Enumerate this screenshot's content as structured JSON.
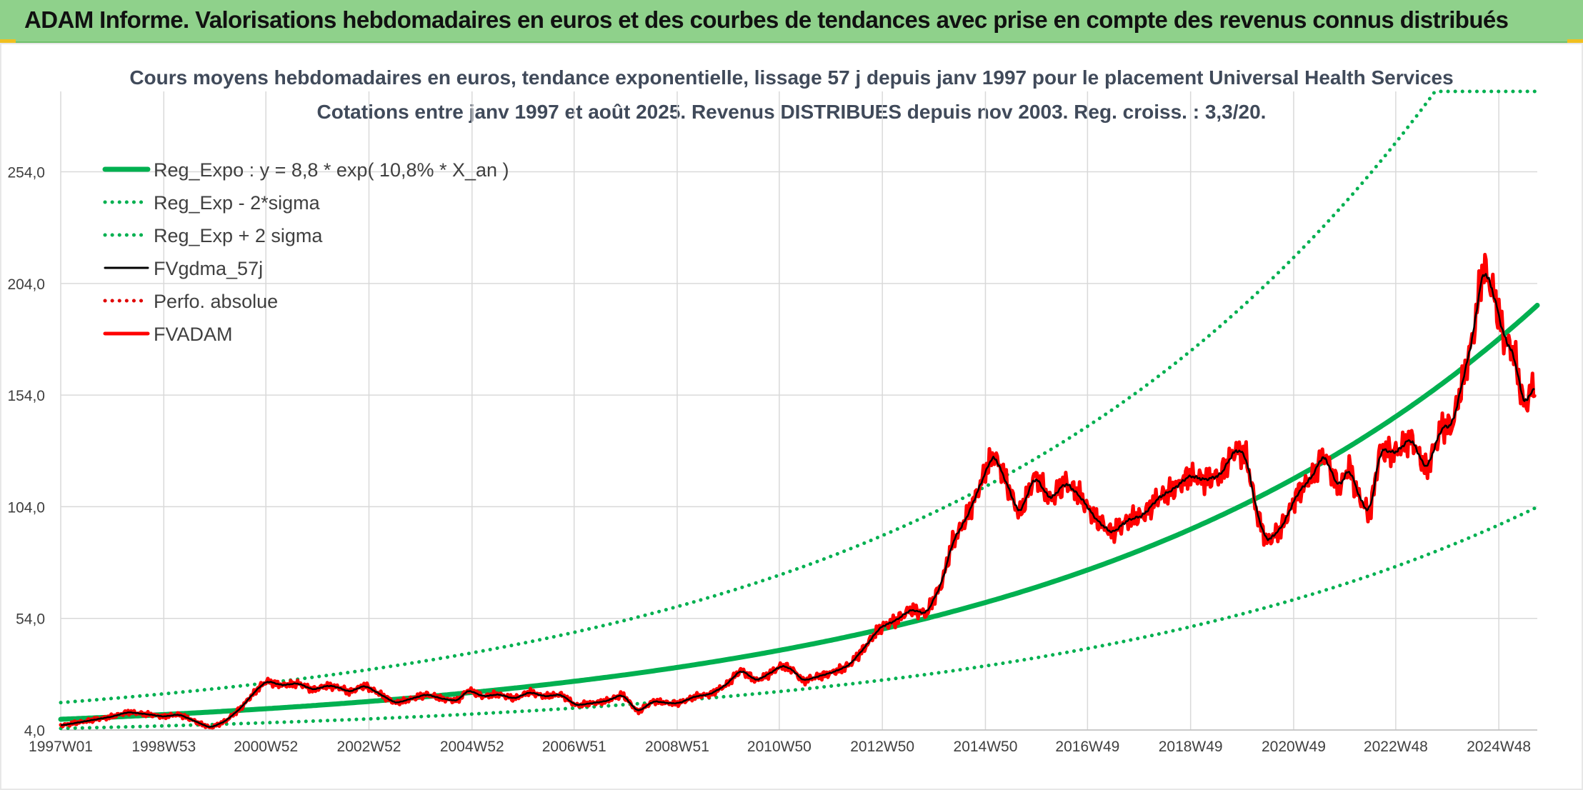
{
  "header": {
    "title": "ADAM Informe. Valorisations hebdomadaires en euros et des courbes de tendances avec prise en compte des revenus connus distribués"
  },
  "chart_data": {
    "type": "line",
    "title": "Cours moyens hebdomadaires en euros, tendance exponentielle, lissage 57 j depuis janv 1997 pour le placement Universal Health Services",
    "subtitle": "Cotations entre janv 1997 et août 2025. Revenus DISTRIBUES depuis nov 2003. Reg. croiss. : 3,3/20.",
    "xlabel": "",
    "ylabel": "",
    "x_ticks": [
      "1997W01",
      "1998W53",
      "2000W52",
      "2002W52",
      "2004W52",
      "2006W51",
      "2008W51",
      "2010W50",
      "2012W50",
      "2014W50",
      "2016W49",
      "2018W49",
      "2020W49",
      "2022W48",
      "2024W48"
    ],
    "y_ticks": [
      "4,0",
      "54,0",
      "104,0",
      "154,0",
      "204,0",
      "254,0"
    ],
    "ylim": [
      4,
      290
    ],
    "xlim": [
      1997.0,
      2025.65
    ],
    "grid": true,
    "legend_position": "top-left",
    "series": [
      {
        "name": "Reg_Expo : y = 8,8 * exp( 10,8% *  X_an )",
        "color": "#00b050",
        "style": "solid-thick",
        "formula": {
          "a": 8.8,
          "rate": 0.108,
          "x0": 1997.0,
          "factor": 1.0
        }
      },
      {
        "name": "Reg_Exp - 2*sigma",
        "color": "#00b050",
        "style": "dotted",
        "formula": {
          "a": 8.8,
          "rate": 0.108,
          "x0": 1997.0,
          "factor": 0.535
        }
      },
      {
        "name": "Reg_Exp + 2 sigma",
        "color": "#00b050",
        "style": "dotted",
        "formula": {
          "a": 8.8,
          "rate": 0.108,
          "x0": 1997.0,
          "factor": 1.85
        },
        "clip_max": 290
      },
      {
        "name": "FVgdma_57j",
        "color": "#000000",
        "style": "solid",
        "smoothing_of": "FVADAM"
      },
      {
        "name": "Perfo. absolue",
        "color": "#e00000",
        "style": "dotted"
      },
      {
        "name": "FVADAM",
        "color": "#ff0000",
        "style": "solid-thick",
        "x": [
          1997.0,
          1997.5,
          1998.0,
          1998.3,
          1998.7,
          1999.0,
          1999.3,
          1999.6,
          1999.9,
          2000.2,
          2000.5,
          2000.8,
          2001.0,
          2001.3,
          2001.6,
          2001.9,
          2002.2,
          2002.4,
          2002.6,
          2002.9,
          2003.2,
          2003.5,
          2003.8,
          2004.1,
          2004.4,
          2004.7,
          2004.9,
          2005.2,
          2005.5,
          2005.8,
          2006.1,
          2006.4,
          2006.7,
          2007.0,
          2007.3,
          2007.6,
          2007.9,
          2008.2,
          2008.5,
          2008.8,
          2009.0,
          2009.3,
          2009.6,
          2009.9,
          2010.2,
          2010.5,
          2010.8,
          2011.0,
          2011.2,
          2011.4,
          2011.7,
          2012.0,
          2012.3,
          2012.6,
          2012.9,
          2013.2,
          2013.5,
          2013.8,
          2014.1,
          2014.3,
          2014.6,
          2014.9,
          2015.1,
          2015.4,
          2015.6,
          2015.9,
          2016.2,
          2016.5,
          2016.8,
          2017.1,
          2017.4,
          2017.7,
          2018.0,
          2018.3,
          2018.6,
          2018.9,
          2019.2,
          2019.5,
          2019.8,
          2020.0,
          2020.2,
          2020.4,
          2020.7,
          2021.0,
          2021.3,
          2021.5,
          2021.8,
          2022.0,
          2022.2,
          2022.4,
          2022.6,
          2022.9,
          2023.2,
          2023.5,
          2023.8,
          2024.0,
          2024.2,
          2024.4,
          2024.6,
          2024.8,
          2025.0,
          2025.2,
          2025.4,
          2025.6
        ],
        "values": [
          6,
          8,
          10,
          12,
          11,
          10,
          11,
          8,
          5,
          8,
          14,
          22,
          26,
          24,
          25,
          22,
          24,
          23,
          21,
          24,
          20,
          16,
          18,
          20,
          18,
          17,
          22,
          19,
          20,
          18,
          21,
          19,
          20,
          15,
          16,
          17,
          20,
          12,
          17,
          16,
          16,
          19,
          20,
          24,
          31,
          26,
          30,
          33,
          31,
          26,
          28,
          30,
          33,
          41,
          50,
          53,
          58,
          56,
          70,
          88,
          100,
          117,
          128,
          112,
          100,
          118,
          107,
          115,
          108,
          98,
          92,
          98,
          100,
          108,
          112,
          118,
          116,
          118,
          130,
          127,
          102,
          88,
          95,
          110,
          118,
          128,
          112,
          122,
          108,
          100,
          130,
          128,
          135,
          120,
          140,
          140,
          160,
          180,
          212,
          200,
          180,
          172,
          148,
          160
        ]
      }
    ]
  }
}
